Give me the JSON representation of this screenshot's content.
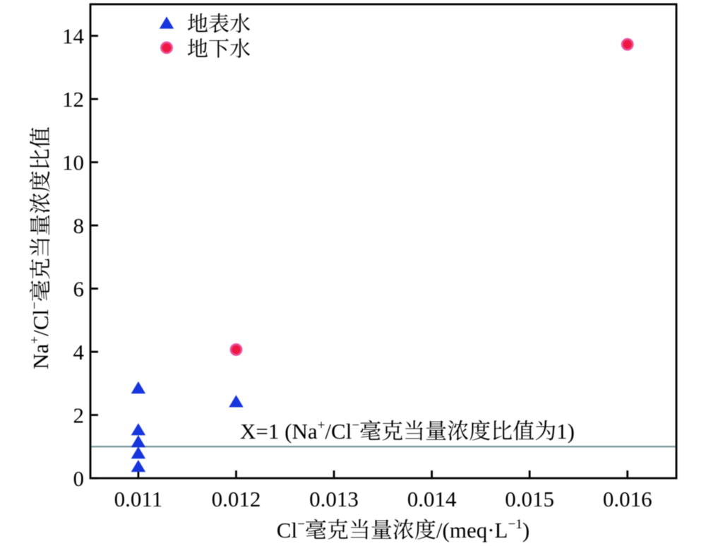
{
  "figure": {
    "type_label": "scatter-plot",
    "background": "#ffffff",
    "text_color": "#000000"
  },
  "chart_data": {
    "type": "scatter",
    "title": "",
    "xlabel": "Cl⁻毫克当量浓度/(meq·L⁻¹)",
    "ylabel": "Na⁺/Cl⁻毫克当量浓度比值",
    "xlim": [
      0.01051,
      0.0165
    ],
    "ylim": [
      0,
      15
    ],
    "xticks": [
      0.011,
      0.012,
      0.013,
      0.014,
      0.015,
      0.016
    ],
    "xtick_labels": [
      "0.011",
      "0.012",
      "0.013",
      "0.014",
      "0.015",
      "0.016"
    ],
    "yticks": [
      0,
      2,
      4,
      6,
      8,
      10,
      12,
      14
    ],
    "ytick_labels": [
      "0",
      "2",
      "4",
      "6",
      "8",
      "10",
      "12",
      "14"
    ],
    "grid": false,
    "frame": true,
    "legend_position": "upper-left",
    "series": [
      {
        "name": "地表水",
        "marker": "triangle",
        "color": "#1635dc",
        "points": [
          [
            0.011,
            2.87
          ],
          [
            0.011,
            1.55
          ],
          [
            0.011,
            1.17
          ],
          [
            0.011,
            0.81
          ],
          [
            0.011,
            0.39
          ],
          [
            0.012,
            2.44
          ]
        ]
      },
      {
        "name": "地下水",
        "marker": "circle",
        "color": "#ee1843",
        "edge_color": "#e9529e",
        "points": [
          [
            0.012,
            4.07
          ],
          [
            0.016,
            13.73
          ]
        ]
      }
    ],
    "reference_line": {
      "y": 1,
      "color": "#7f9ba0",
      "label": "X=1 (Na⁺/Cl⁻毫克当量浓度比值为1)"
    }
  }
}
